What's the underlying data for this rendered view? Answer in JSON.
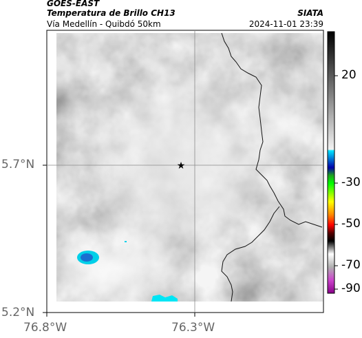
{
  "header": {
    "satellite": "GOES-EAST",
    "product": "Temperatura de Brillo CH13",
    "agency": "SIATA",
    "region": "Vía Medellín - Quibdó 50km",
    "datetime": "2024-11-01 23:39"
  },
  "map": {
    "lat_ticks": [
      "5.7°N",
      "5.2°N"
    ],
    "lon_ticks": [
      "76.8°W",
      "76.3°W"
    ],
    "marker": "star-icon"
  },
  "colorbar": {
    "ticks": [
      "20",
      "-30",
      "-50",
      "-70",
      "-90"
    ]
  }
}
